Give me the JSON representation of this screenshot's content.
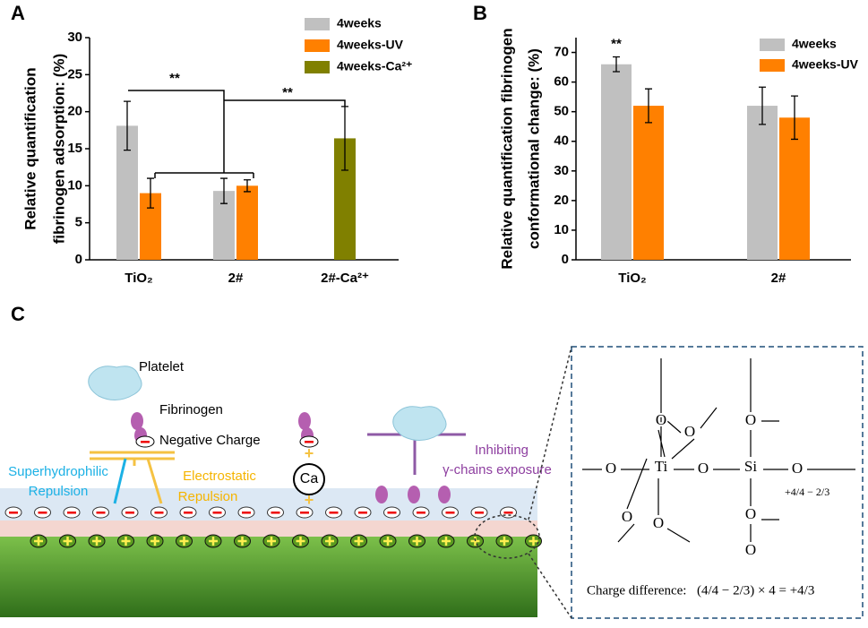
{
  "panel_labels": [
    "A",
    "B",
    "C"
  ],
  "chart_data": [
    {
      "type": "bar",
      "ylabel": [
        "Relative quantification",
        "fibrinogen adsorption: (%)"
      ],
      "categories": [
        "TiO₂",
        "2#",
        "2#-Ca²⁺"
      ],
      "series": [
        {
          "name": "4weeks",
          "color": "#c0c0c0",
          "values": [
            18.1,
            9.3,
            null
          ],
          "errors": [
            3.3,
            1.7,
            null
          ]
        },
        {
          "name": "4weeks-UV",
          "color": "#ff8000",
          "values": [
            9.0,
            10.0,
            null
          ],
          "errors": [
            2.0,
            0.8,
            null
          ]
        },
        {
          "name": "4weeks-Ca²⁺",
          "color": "#808000",
          "values": [
            null,
            null,
            16.4
          ],
          "errors": [
            null,
            null,
            4.3
          ]
        }
      ],
      "ylim": [
        0,
        30
      ],
      "yticks": [
        0,
        5,
        10,
        15,
        20,
        25,
        30
      ],
      "annotations": [
        "**",
        "**"
      ]
    },
    {
      "type": "bar",
      "ylabel": [
        "Relative quantification fibrinogen",
        "conformational change: (%)"
      ],
      "categories": [
        "TiO₂",
        "2#"
      ],
      "series": [
        {
          "name": "4weeks",
          "color": "#c0c0c0",
          "values": [
            66,
            52
          ],
          "errors": [
            2.5,
            6.3
          ]
        },
        {
          "name": "4weeks-UV",
          "color": "#ff8000",
          "values": [
            52,
            48
          ],
          "errors": [
            5.7,
            7.3
          ]
        }
      ],
      "ylim": [
        0,
        75
      ],
      "yticks": [
        0,
        10,
        20,
        30,
        40,
        50,
        60,
        70
      ],
      "annotations": [
        "**"
      ]
    }
  ],
  "diagram": {
    "platelet": "Platelet",
    "fibrinogen": "Fibrinogen",
    "negative": "Negative Charge",
    "superhydrophilic": [
      "Superhydrophilic",
      "Repulsion"
    ],
    "electrostatic": [
      "Electrostatic",
      "Repulsion"
    ],
    "ca": "Ca",
    "inhibiting": [
      "Inhibiting",
      "γ-chains exposure"
    ],
    "atoms": [
      "O",
      "O",
      "O",
      "Ti",
      "O",
      "Si",
      "O",
      "O",
      "O",
      "O",
      "O",
      "O"
    ],
    "local_charge": "+4/4 − 2/3",
    "charge_label": "Charge difference:",
    "formula": "(4/4 − 2/3) × 4 = +4/3"
  }
}
